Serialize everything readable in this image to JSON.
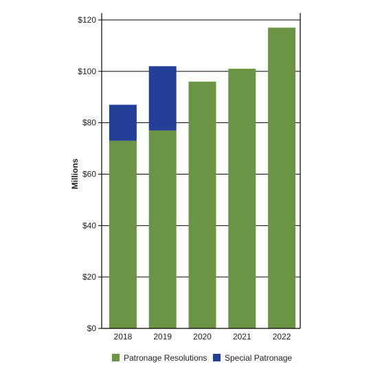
{
  "chart_data": {
    "type": "bar",
    "stacked": true,
    "categories": [
      "2018",
      "2019",
      "2020",
      "2021",
      "2022"
    ],
    "series": [
      {
        "name": "Patronage Resolutions",
        "values": [
          73,
          77,
          96,
          101,
          117
        ],
        "color": "#6b9444"
      },
      {
        "name": "Special Patronage",
        "values": [
          14,
          25,
          0,
          0,
          0
        ],
        "color": "#243f98"
      }
    ],
    "ylabel": "Millions",
    "ylim": [
      0,
      120
    ],
    "yticks": [
      0,
      20,
      40,
      60,
      80,
      100,
      120
    ],
    "ytick_labels": [
      "$0",
      "$20",
      "$40",
      "$60",
      "$80",
      "$100",
      "$120"
    ],
    "grid": true,
    "legend_position": "bottom"
  }
}
